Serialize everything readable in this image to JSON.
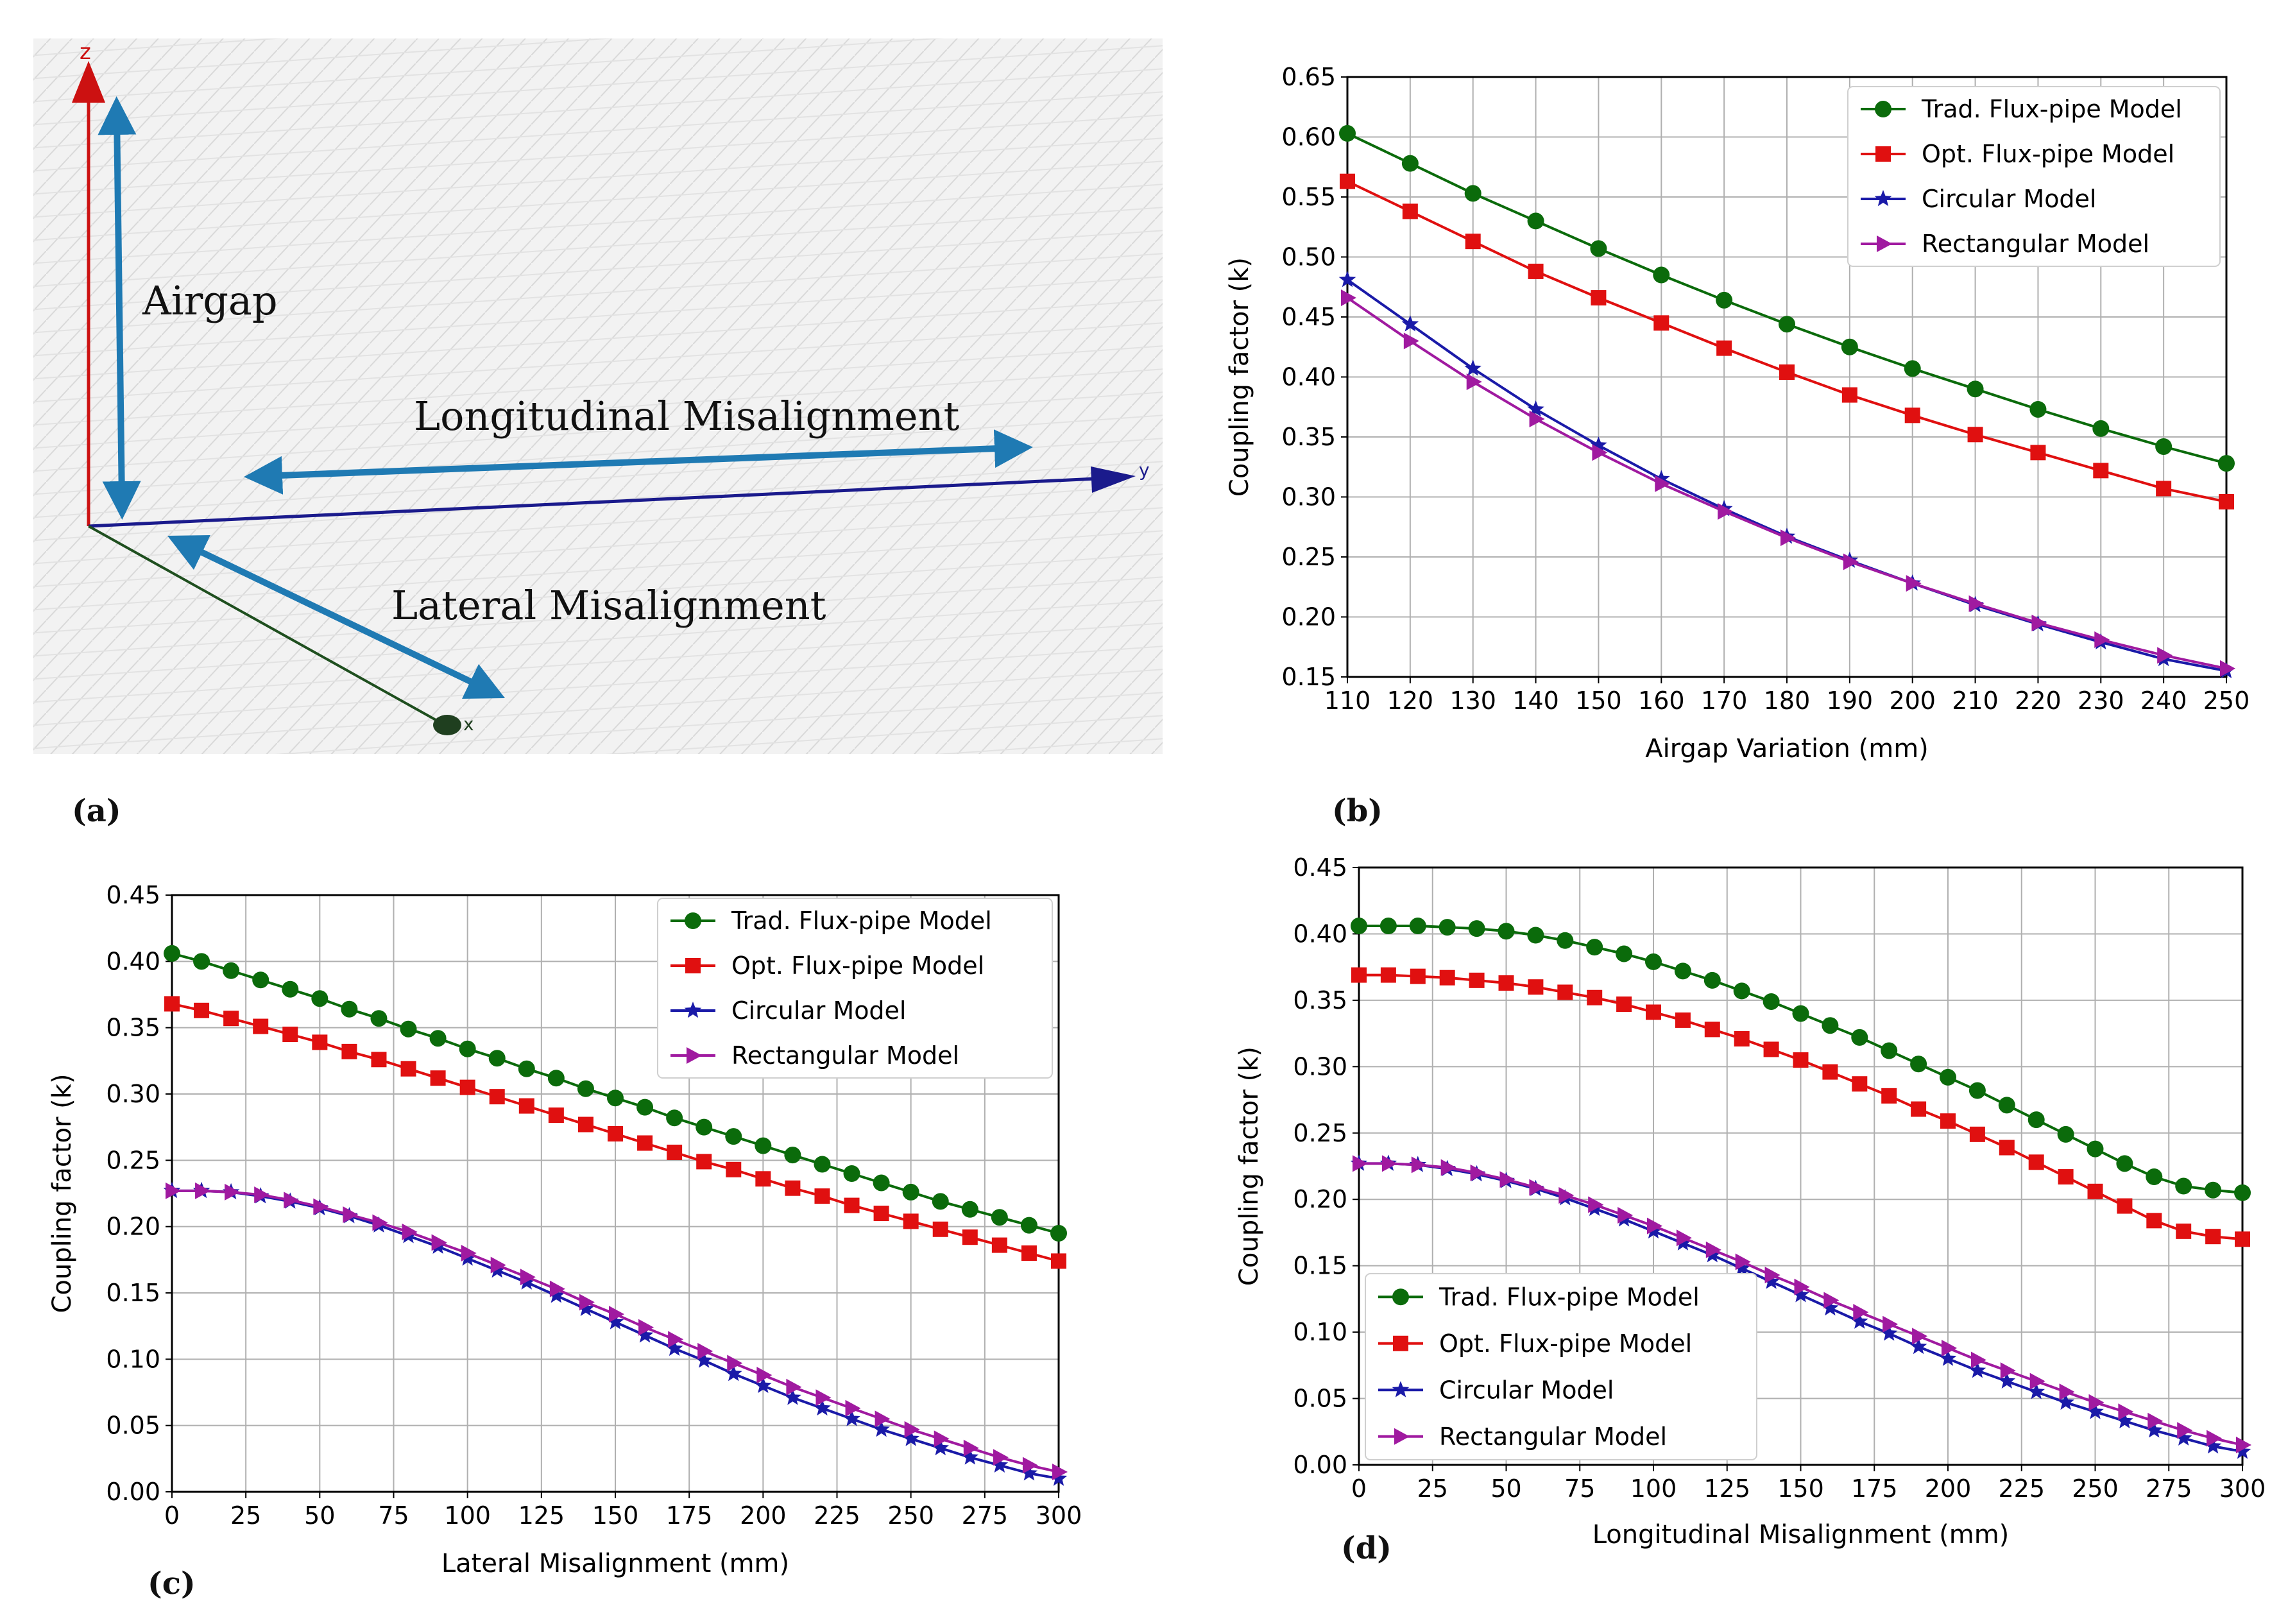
{
  "panel_labels": {
    "a": "(a)",
    "b": "(b)",
    "c": "(c)",
    "d": "(d)"
  },
  "diagram": {
    "labels": {
      "airgap": "Airgap",
      "longitudinal": "Longitudinal Misalignment",
      "lateral": "Lateral Misalignment"
    },
    "axes": {
      "z": "z",
      "y": "y",
      "x": "x"
    },
    "colors": {
      "z_axis": "#cc1111",
      "y_axis": "#1a1a8c",
      "x_axis": "#1f4f1f",
      "arrow": "#1f7ab3"
    }
  },
  "chart_data": [
    {
      "id": "b",
      "type": "line",
      "title": "",
      "xlabel": "Airgap Variation (mm)",
      "ylabel": "Coupling factor (k)",
      "xlim": [
        110,
        250
      ],
      "ylim": [
        0.15,
        0.65
      ],
      "xticks": [
        110,
        120,
        130,
        140,
        150,
        160,
        170,
        180,
        190,
        200,
        210,
        220,
        230,
        240,
        250
      ],
      "yticks": [
        0.15,
        0.2,
        0.25,
        0.3,
        0.35,
        0.4,
        0.45,
        0.5,
        0.55,
        0.6,
        0.65
      ],
      "ytick_labels": [
        "0.15",
        "0.20",
        "0.25",
        "0.30",
        "0.35",
        "0.40",
        "0.45",
        "0.50",
        "0.55",
        "0.60",
        "0.65"
      ],
      "grid": true,
      "legend_position": "top-right",
      "x": [
        110,
        120,
        130,
        140,
        150,
        160,
        170,
        180,
        190,
        200,
        210,
        220,
        230,
        240,
        250
      ],
      "series": [
        {
          "name": "Trad. Flux-pipe Model",
          "color": "#0b6b0b",
          "marker": "circle",
          "values": [
            0.603,
            0.578,
            0.553,
            0.53,
            0.507,
            0.485,
            0.464,
            0.444,
            0.425,
            0.407,
            0.39,
            0.373,
            0.357,
            0.342,
            0.328
          ]
        },
        {
          "name": "Opt. Flux-pipe Model",
          "color": "#e01010",
          "marker": "square",
          "values": [
            0.563,
            0.538,
            0.513,
            0.488,
            0.466,
            0.445,
            0.424,
            0.404,
            0.385,
            0.368,
            0.352,
            0.337,
            0.322,
            0.307,
            0.296
          ]
        },
        {
          "name": "Circular Model",
          "color": "#1a1aa8",
          "marker": "star",
          "values": [
            0.481,
            0.444,
            0.407,
            0.373,
            0.343,
            0.315,
            0.29,
            0.267,
            0.247,
            0.228,
            0.21,
            0.194,
            0.179,
            0.165,
            0.155
          ]
        },
        {
          "name": "Rectangular Model",
          "color": "#a01aa0",
          "marker": "triangle-right",
          "values": [
            0.466,
            0.43,
            0.396,
            0.365,
            0.337,
            0.311,
            0.288,
            0.266,
            0.246,
            0.228,
            0.211,
            0.195,
            0.181,
            0.168,
            0.157
          ]
        }
      ]
    },
    {
      "id": "c",
      "type": "line",
      "title": "",
      "xlabel": "Lateral Misalignment (mm)",
      "ylabel": "Coupling factor (k)",
      "xlim": [
        0,
        300
      ],
      "ylim": [
        0,
        0.45
      ],
      "xticks": [
        0,
        25,
        50,
        75,
        100,
        125,
        150,
        175,
        200,
        225,
        250,
        275,
        300
      ],
      "yticks": [
        0,
        0.05,
        0.1,
        0.15,
        0.2,
        0.25,
        0.3,
        0.35,
        0.4,
        0.45
      ],
      "ytick_labels": [
        "0.00",
        "0.05",
        "0.10",
        "0.15",
        "0.20",
        "0.25",
        "0.30",
        "0.35",
        "0.40",
        "0.45"
      ],
      "grid": true,
      "legend_position": "top-right",
      "x": [
        0,
        10,
        20,
        30,
        40,
        50,
        60,
        70,
        80,
        90,
        100,
        110,
        120,
        130,
        140,
        150,
        160,
        170,
        180,
        190,
        200,
        210,
        220,
        230,
        240,
        250,
        260,
        270,
        280,
        290,
        300
      ],
      "series": [
        {
          "name": "Trad. Flux-pipe Model",
          "color": "#0b6b0b",
          "marker": "circle",
          "values": [
            0.406,
            0.4,
            0.393,
            0.386,
            0.379,
            0.372,
            0.364,
            0.357,
            0.349,
            0.342,
            0.334,
            0.327,
            0.319,
            0.312,
            0.304,
            0.297,
            0.29,
            0.282,
            0.275,
            0.268,
            0.261,
            0.254,
            0.247,
            0.24,
            0.233,
            0.226,
            0.219,
            0.213,
            0.207,
            0.201,
            0.195
          ]
        },
        {
          "name": "Opt. Flux-pipe Model",
          "color": "#e01010",
          "marker": "square",
          "values": [
            0.368,
            0.363,
            0.357,
            0.351,
            0.345,
            0.339,
            0.332,
            0.326,
            0.319,
            0.312,
            0.305,
            0.298,
            0.291,
            0.284,
            0.277,
            0.27,
            0.263,
            0.256,
            0.249,
            0.243,
            0.236,
            0.229,
            0.223,
            0.216,
            0.21,
            0.204,
            0.198,
            0.192,
            0.186,
            0.18,
            0.174
          ]
        },
        {
          "name": "Circular Model",
          "color": "#1a1aa8",
          "marker": "star",
          "values": [
            0.227,
            0.227,
            0.226,
            0.223,
            0.219,
            0.214,
            0.208,
            0.201,
            0.193,
            0.185,
            0.176,
            0.167,
            0.158,
            0.148,
            0.138,
            0.128,
            0.118,
            0.108,
            0.099,
            0.089,
            0.08,
            0.071,
            0.063,
            0.055,
            0.047,
            0.04,
            0.033,
            0.026,
            0.02,
            0.014,
            0.01
          ]
        },
        {
          "name": "Rectangular Model",
          "color": "#a01aa0",
          "marker": "triangle-right",
          "values": [
            0.227,
            0.227,
            0.226,
            0.224,
            0.22,
            0.215,
            0.209,
            0.203,
            0.196,
            0.188,
            0.18,
            0.171,
            0.162,
            0.153,
            0.143,
            0.134,
            0.124,
            0.115,
            0.106,
            0.097,
            0.088,
            0.079,
            0.071,
            0.063,
            0.055,
            0.047,
            0.04,
            0.033,
            0.026,
            0.02,
            0.015
          ]
        }
      ]
    },
    {
      "id": "d",
      "type": "line",
      "title": "",
      "xlabel": "Longitudinal Misalignment (mm)",
      "ylabel": "Coupling factor (k)",
      "xlim": [
        0,
        300
      ],
      "ylim": [
        0,
        0.45
      ],
      "xticks": [
        0,
        25,
        50,
        75,
        100,
        125,
        150,
        175,
        200,
        225,
        250,
        275,
        300
      ],
      "yticks": [
        0,
        0.05,
        0.1,
        0.15,
        0.2,
        0.25,
        0.3,
        0.35,
        0.4,
        0.45
      ],
      "ytick_labels": [
        "0.00",
        "0.05",
        "0.10",
        "0.15",
        "0.20",
        "0.25",
        "0.30",
        "0.35",
        "0.40",
        "0.45"
      ],
      "grid": true,
      "legend_position": "bottom-left",
      "x": [
        0,
        10,
        20,
        30,
        40,
        50,
        60,
        70,
        80,
        90,
        100,
        110,
        120,
        130,
        140,
        150,
        160,
        170,
        180,
        190,
        200,
        210,
        220,
        230,
        240,
        250,
        260,
        270,
        280,
        290,
        300
      ],
      "series": [
        {
          "name": "Trad. Flux-pipe Model",
          "color": "#0b6b0b",
          "marker": "circle",
          "values": [
            0.406,
            0.406,
            0.406,
            0.405,
            0.404,
            0.402,
            0.399,
            0.395,
            0.39,
            0.385,
            0.379,
            0.372,
            0.365,
            0.357,
            0.349,
            0.34,
            0.331,
            0.322,
            0.312,
            0.302,
            0.292,
            0.282,
            0.271,
            0.26,
            0.249,
            0.238,
            0.227,
            0.217,
            0.21,
            0.207,
            0.205
          ]
        },
        {
          "name": "Opt. Flux-pipe Model",
          "color": "#e01010",
          "marker": "square",
          "values": [
            0.369,
            0.369,
            0.368,
            0.367,
            0.365,
            0.363,
            0.36,
            0.356,
            0.352,
            0.347,
            0.341,
            0.335,
            0.328,
            0.321,
            0.313,
            0.305,
            0.296,
            0.287,
            0.278,
            0.268,
            0.259,
            0.249,
            0.239,
            0.228,
            0.217,
            0.206,
            0.195,
            0.184,
            0.176,
            0.172,
            0.17
          ]
        },
        {
          "name": "Circular Model",
          "color": "#1a1aa8",
          "marker": "star",
          "values": [
            0.227,
            0.227,
            0.226,
            0.223,
            0.219,
            0.214,
            0.208,
            0.201,
            0.193,
            0.185,
            0.176,
            0.167,
            0.158,
            0.148,
            0.138,
            0.128,
            0.118,
            0.108,
            0.099,
            0.089,
            0.08,
            0.071,
            0.063,
            0.055,
            0.047,
            0.04,
            0.033,
            0.026,
            0.02,
            0.014,
            0.01
          ]
        },
        {
          "name": "Rectangular Model",
          "color": "#a01aa0",
          "marker": "triangle-right",
          "values": [
            0.227,
            0.227,
            0.226,
            0.224,
            0.22,
            0.215,
            0.209,
            0.203,
            0.196,
            0.188,
            0.18,
            0.171,
            0.162,
            0.153,
            0.143,
            0.134,
            0.124,
            0.115,
            0.106,
            0.097,
            0.088,
            0.079,
            0.071,
            0.063,
            0.055,
            0.047,
            0.04,
            0.033,
            0.026,
            0.02,
            0.015
          ]
        }
      ]
    }
  ]
}
